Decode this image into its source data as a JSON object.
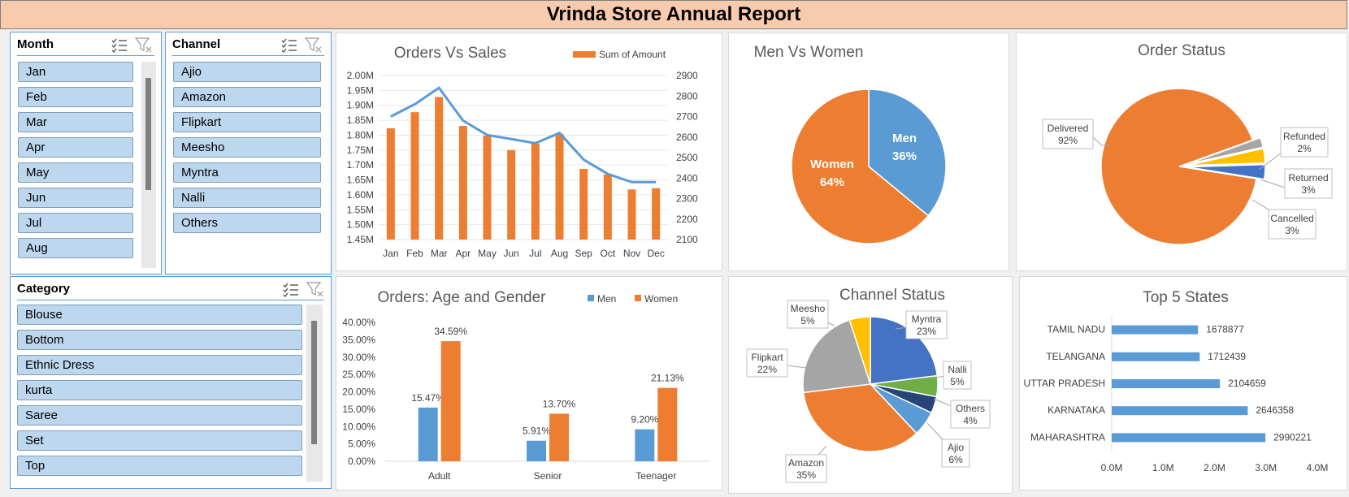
{
  "title": "Vrinda Store Annual Report",
  "slicers": {
    "month": {
      "title": "Month",
      "items": [
        "Jan",
        "Feb",
        "Mar",
        "Apr",
        "May",
        "Jun",
        "Jul",
        "Aug"
      ]
    },
    "channel": {
      "title": "Channel",
      "items": [
        "Ajio",
        "Amazon",
        "Flipkart",
        "Meesho",
        "Myntra",
        "Nalli",
        "Others"
      ]
    },
    "category": {
      "title": "Category",
      "items": [
        "Blouse",
        "Bottom",
        "Ethnic Dress",
        "kurta",
        "Saree",
        "Set",
        "Top"
      ]
    }
  },
  "chart_data": [
    {
      "type": "bar",
      "title": "Orders Vs Sales",
      "categories": [
        "Jan",
        "Feb",
        "Mar",
        "Apr",
        "May",
        "Jun",
        "Jul",
        "Aug",
        "Sep",
        "Oct",
        "Nov",
        "Dec"
      ],
      "series": [
        {
          "name": "Sum of Amount",
          "type": "bar",
          "axis": "left",
          "color": "#ed7d31",
          "values": [
            1823000,
            1877000,
            1928000,
            1831000,
            1798000,
            1750000,
            1772000,
            1805000,
            1687000,
            1668000,
            1618000,
            1622000
          ]
        },
        {
          "type": "line",
          "axis": "right",
          "color": "#5b9bd5",
          "values": [
            2700,
            2760,
            2840,
            2680,
            2610,
            2590,
            2570,
            2620,
            2490,
            2420,
            2380,
            2380
          ]
        }
      ],
      "ylim": [
        1450000,
        2000000
      ],
      "yticks": [
        "1.45M",
        "1.50M",
        "1.55M",
        "1.60M",
        "1.65M",
        "1.70M",
        "1.75M",
        "1.80M",
        "1.85M",
        "1.90M",
        "1.95M",
        "2.00M"
      ],
      "y2lim": [
        2100,
        2900
      ],
      "y2ticks": [
        "2100",
        "2200",
        "2300",
        "2400",
        "2500",
        "2600",
        "2700",
        "2800",
        "2900"
      ],
      "legend": "top-right"
    },
    {
      "type": "pie",
      "title": "Men Vs Women",
      "slices": [
        {
          "name": "Men",
          "value": 36,
          "label": "36%",
          "color": "#5b9bd5"
        },
        {
          "name": "Women",
          "value": 64,
          "label": "64%",
          "color": "#ed7d31"
        }
      ]
    },
    {
      "type": "pie",
      "title": "Order Status",
      "slices": [
        {
          "name": "Delivered",
          "value": 92,
          "label": "92%",
          "color": "#ed7d31"
        },
        {
          "name": "Refunded",
          "value": 2,
          "label": "2%",
          "color": "#a5a5a5"
        },
        {
          "name": "Returned",
          "value": 3,
          "label": "3%",
          "color": "#ffc000"
        },
        {
          "name": "Cancelled",
          "value": 3,
          "label": "3%",
          "color": "#4472c4"
        }
      ]
    },
    {
      "type": "bar",
      "title": "Orders: Age and Gender",
      "categories": [
        "Adult",
        "Senior",
        "Teenager"
      ],
      "series": [
        {
          "name": "Men",
          "color": "#5b9bd5",
          "values": [
            15.47,
            5.91,
            9.2
          ],
          "labels": [
            "15.47%",
            "5.91%",
            "9.20%"
          ]
        },
        {
          "name": "Women",
          "color": "#ed7d31",
          "values": [
            34.59,
            13.7,
            21.13
          ],
          "labels": [
            "34.59%",
            "13.70%",
            "21.13%"
          ]
        }
      ],
      "ylim": [
        0,
        40
      ],
      "yticks": [
        "0.00%",
        "5.00%",
        "10.00%",
        "15.00%",
        "20.00%",
        "25.00%",
        "30.00%",
        "35.00%",
        "40.00%"
      ],
      "legend": "top-right"
    },
    {
      "type": "pie",
      "title": "Channel Status",
      "slices": [
        {
          "name": "Myntra",
          "value": 23,
          "label": "23%",
          "color": "#4472c4"
        },
        {
          "name": "Nalli",
          "value": 5,
          "label": "5%",
          "color": "#70ad47"
        },
        {
          "name": "Others",
          "value": 4,
          "label": "4%",
          "color": "#264478"
        },
        {
          "name": "Ajio",
          "value": 6,
          "label": "6%",
          "color": "#5b9bd5"
        },
        {
          "name": "Amazon",
          "value": 35,
          "label": "35%",
          "color": "#ed7d31"
        },
        {
          "name": "Flipkart",
          "value": 22,
          "label": "22%",
          "color": "#a5a5a5"
        },
        {
          "name": "Meesho",
          "value": 5,
          "label": "5%",
          "color": "#ffc000"
        }
      ]
    },
    {
      "type": "bar",
      "orientation": "horizontal",
      "title": "Top 5 States",
      "categories": [
        "TAMIL NADU",
        "TELANGANA",
        "UTTAR PRADESH",
        "KARNATAKA",
        "MAHARASHTRA"
      ],
      "values": [
        1678877,
        1712439,
        2104659,
        2646358,
        2990221
      ],
      "labels": [
        "1678877",
        "1712439",
        "2104659",
        "2646358",
        "2990221"
      ],
      "color": "#5b9bd5",
      "xlim": [
        0,
        4000000
      ],
      "xticks": [
        "0.0M",
        "1.0M",
        "2.0M",
        "3.0M",
        "4.0M"
      ]
    }
  ]
}
